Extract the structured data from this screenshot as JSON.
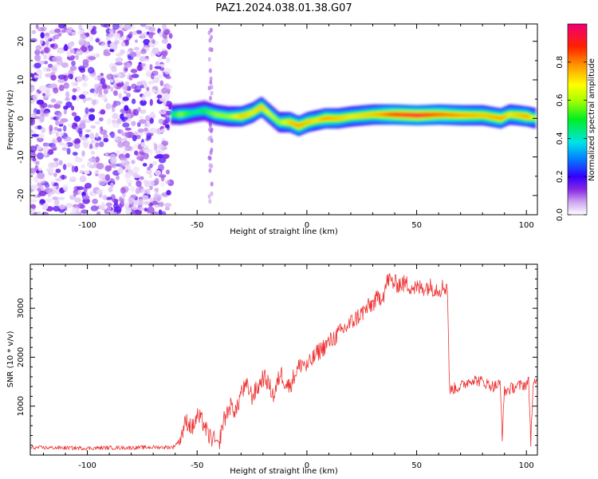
{
  "figure": {
    "title": "PAZ1.2024.038.01.38.G07"
  },
  "chart_data": [
    {
      "type": "heatmap",
      "title": "PAZ1.2024.038.01.38.G07",
      "xlabel": "Height of straight line (km)",
      "ylabel": "Frequency (Hz)",
      "xlim": [
        -126,
        105
      ],
      "ylim": [
        -25,
        24.5
      ],
      "xticks": [
        -100,
        -50,
        0,
        50,
        100
      ],
      "yticks": [
        -20,
        -10,
        0,
        10,
        20
      ],
      "grid": false,
      "colorbar": {
        "label": "Normalized spectral amplitude",
        "range": [
          0,
          1
        ],
        "ticks": [
          "0.0",
          "0.2",
          "0.4",
          "0.6",
          "0.8"
        ]
      },
      "ridge": {
        "x": [
          -62,
          -58,
          -52,
          -47,
          -42,
          -36,
          -30,
          -25,
          -21,
          -17,
          -13,
          -8,
          -4,
          0,
          4,
          8,
          14,
          20,
          30,
          40,
          50,
          60,
          70,
          80,
          88,
          92,
          96,
          100,
          104
        ],
        "frequency": [
          1,
          1,
          1.5,
          2,
          1,
          0.5,
          0.5,
          1.5,
          3,
          1,
          -1,
          -1,
          -2,
          -1,
          -0.5,
          0,
          0,
          0.5,
          1,
          1,
          0.8,
          1,
          0.8,
          0.8,
          0,
          1,
          0.8,
          0.5,
          0
        ],
        "amplitude": [
          0.45,
          0.6,
          0.45,
          0.5,
          0.6,
          0.6,
          0.75,
          0.7,
          0.75,
          0.65,
          0.6,
          0.75,
          0.8,
          0.75,
          0.7,
          0.8,
          0.75,
          0.7,
          0.75,
          0.9,
          0.95,
          0.85,
          0.8,
          0.75,
          0.8,
          0.7,
          0.75,
          0.8,
          0.6
        ]
      },
      "noise_region_x": [
        -126,
        -62
      ]
    },
    {
      "type": "line",
      "xlabel": "Height of straight line (km)",
      "ylabel": "SNR (10 * v/v)",
      "xlim": [
        -126,
        105
      ],
      "ylim": [
        0,
        3900
      ],
      "xticks": [
        -100,
        -50,
        0,
        50,
        100
      ],
      "yticks": [
        1000,
        2000,
        3000
      ],
      "grid": false,
      "series": [
        {
          "color": "#ee3333",
          "x": [
            -126,
            -115,
            -100,
            -90,
            -80,
            -70,
            -61,
            -58,
            -55,
            -52,
            -50,
            -47,
            -45,
            -42,
            -40,
            -38,
            -35,
            -32,
            -30,
            -27,
            -25,
            -22,
            -20,
            -18,
            -15,
            -12,
            -10,
            -8,
            -5,
            -2,
            0,
            5,
            10,
            15,
            20,
            25,
            30,
            35,
            37,
            40,
            45,
            50,
            55,
            60,
            64,
            65,
            66,
            70,
            75,
            80,
            85,
            88,
            89,
            90,
            95,
            100,
            101,
            102,
            103,
            105
          ],
          "snr": [
            150,
            150,
            140,
            150,
            150,
            160,
            160,
            300,
            700,
            550,
            800,
            650,
            400,
            300,
            250,
            700,
            1000,
            900,
            1300,
            1400,
            1200,
            1400,
            1600,
            1500,
            1200,
            1700,
            1500,
            1400,
            1700,
            1900,
            1800,
            2100,
            2300,
            2500,
            2700,
            2900,
            3100,
            3300,
            3600,
            3500,
            3500,
            3400,
            3450,
            3400,
            3450,
            1300,
            1350,
            1400,
            1550,
            1500,
            1400,
            1450,
            400,
            1300,
            1400,
            1450,
            1500,
            300,
            1400,
            1500
          ]
        }
      ]
    }
  ]
}
